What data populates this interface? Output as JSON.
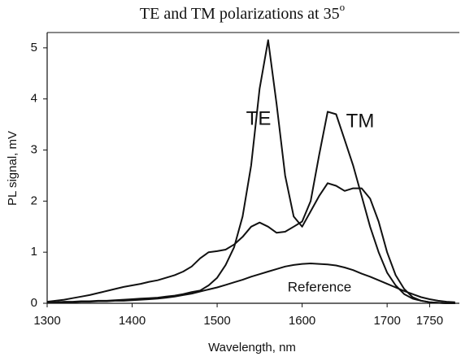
{
  "chart_data": {
    "type": "line",
    "title": "TE and TM polarizations at 35",
    "title_superscript": "o",
    "xlabel": "Wavelength, nm",
    "ylabel": "PL signal, mV",
    "x": [
      1300,
      1310,
      1320,
      1330,
      1340,
      1350,
      1360,
      1370,
      1380,
      1390,
      1400,
      1410,
      1420,
      1430,
      1440,
      1450,
      1460,
      1470,
      1480,
      1490,
      1500,
      1510,
      1520,
      1530,
      1540,
      1550,
      1560,
      1570,
      1580,
      1590,
      1600,
      1610,
      1620,
      1630,
      1640,
      1650,
      1660,
      1670,
      1680,
      1690,
      1700,
      1710,
      1720,
      1730,
      1740,
      1750,
      1760,
      1770,
      1780
    ],
    "series": [
      {
        "name": "TE",
        "color": "#111111",
        "values": [
          0.02,
          0.02,
          0.03,
          0.03,
          0.04,
          0.04,
          0.05,
          0.05,
          0.06,
          0.07,
          0.08,
          0.09,
          0.1,
          0.11,
          0.13,
          0.15,
          0.18,
          0.22,
          0.25,
          0.35,
          0.5,
          0.75,
          1.1,
          1.7,
          2.7,
          4.2,
          5.15,
          3.9,
          2.5,
          1.7,
          1.5,
          1.8,
          2.1,
          2.35,
          2.3,
          2.2,
          2.25,
          2.25,
          2.05,
          1.6,
          1.0,
          0.55,
          0.28,
          0.12,
          0.05,
          0.02,
          0.01,
          0,
          0
        ]
      },
      {
        "name": "TM",
        "color": "#111111",
        "values": [
          0.03,
          0.05,
          0.07,
          0.1,
          0.13,
          0.16,
          0.2,
          0.24,
          0.28,
          0.32,
          0.35,
          0.38,
          0.42,
          0.45,
          0.5,
          0.55,
          0.62,
          0.72,
          0.88,
          1.0,
          1.02,
          1.05,
          1.15,
          1.3,
          1.5,
          1.58,
          1.5,
          1.38,
          1.4,
          1.5,
          1.6,
          2.0,
          2.9,
          3.75,
          3.7,
          3.2,
          2.7,
          2.1,
          1.5,
          1.0,
          0.6,
          0.35,
          0.18,
          0.09,
          0.05,
          0.02,
          0.01,
          0,
          0
        ]
      },
      {
        "name": "Reference",
        "color": "#111111",
        "values": [
          0.01,
          0.01,
          0.02,
          0.02,
          0.03,
          0.03,
          0.04,
          0.04,
          0.05,
          0.05,
          0.06,
          0.07,
          0.08,
          0.09,
          0.11,
          0.13,
          0.16,
          0.19,
          0.23,
          0.27,
          0.31,
          0.36,
          0.41,
          0.46,
          0.52,
          0.57,
          0.62,
          0.67,
          0.72,
          0.75,
          0.77,
          0.78,
          0.77,
          0.76,
          0.74,
          0.7,
          0.65,
          0.58,
          0.52,
          0.45,
          0.38,
          0.31,
          0.24,
          0.18,
          0.12,
          0.08,
          0.05,
          0.03,
          0.02
        ]
      }
    ],
    "xlim": [
      1300,
      1785
    ],
    "xticks": [
      1300,
      1400,
      1500,
      1600,
      1700,
      1750
    ],
    "ylim": [
      0,
      5.3
    ],
    "yticks": [
      0,
      1,
      2,
      3,
      4,
      5
    ],
    "grid": false
  }
}
